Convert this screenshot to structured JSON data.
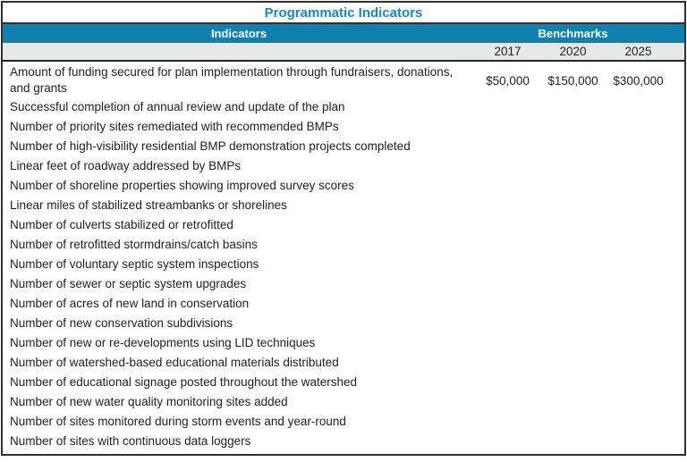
{
  "title": "Programmatic Indicators",
  "header": {
    "indicators_label": "Indicators",
    "benchmarks_label": "Benchmarks",
    "years": [
      "2017",
      "2020",
      "2025"
    ]
  },
  "rows": [
    {
      "indicator": "Amount of funding secured for plan implementation through fundraisers, donations, and grants",
      "values": [
        "$50,000",
        "$150,000",
        "$300,000"
      ]
    },
    {
      "indicator": "Successful completion of annual review and update of the plan",
      "values": [
        "",
        "",
        ""
      ]
    },
    {
      "indicator": "Number of priority sites remediated with recommended BMPs",
      "values": [
        "",
        "",
        ""
      ]
    },
    {
      "indicator": "Number of high-visibility residential BMP demonstration projects completed",
      "values": [
        "",
        "",
        ""
      ]
    },
    {
      "indicator": "Linear feet of roadway addressed by BMPs",
      "values": [
        "",
        "",
        ""
      ]
    },
    {
      "indicator": "Number of shoreline properties showing improved survey scores",
      "values": [
        "",
        "",
        ""
      ]
    },
    {
      "indicator": "Linear miles of stabilized streambanks or shorelines",
      "values": [
        "",
        "",
        ""
      ]
    },
    {
      "indicator": "Number of culverts stabilized or retrofitted",
      "values": [
        "",
        "",
        ""
      ]
    },
    {
      "indicator": "Number of retrofitted stormdrains/catch basins",
      "values": [
        "",
        "",
        ""
      ]
    },
    {
      "indicator": "Number of voluntary septic system inspections",
      "values": [
        "",
        "",
        ""
      ]
    },
    {
      "indicator": "Number of sewer or septic system upgrades",
      "values": [
        "",
        "",
        ""
      ]
    },
    {
      "indicator": "Number of acres of new land in conservation",
      "values": [
        "",
        "",
        ""
      ]
    },
    {
      "indicator": "Number of new conservation subdivisions",
      "values": [
        "",
        "",
        ""
      ]
    },
    {
      "indicator": "Number of new or re-developments using LID techniques",
      "values": [
        "",
        "",
        ""
      ]
    },
    {
      "indicator": "Number of watershed-based educational materials distributed",
      "values": [
        "",
        "",
        ""
      ]
    },
    {
      "indicator": "Number of educational signage posted throughout the watershed",
      "values": [
        "",
        "",
        ""
      ]
    },
    {
      "indicator": "Number of new water quality monitoring sites added",
      "values": [
        "",
        "",
        ""
      ]
    },
    {
      "indicator": "Number of sites monitored during storm events and year-round",
      "values": [
        "",
        "",
        ""
      ]
    },
    {
      "indicator": "Number of sites with continuous data loggers",
      "values": [
        "",
        "",
        ""
      ]
    }
  ],
  "colors": {
    "title_text": "#1787c6",
    "header_bg": "#1080ae",
    "header_text": "#ffffff",
    "year_row_bg": "#e7e8e9",
    "border": "#2f2f2f",
    "body_text": "#1f1f1f"
  }
}
